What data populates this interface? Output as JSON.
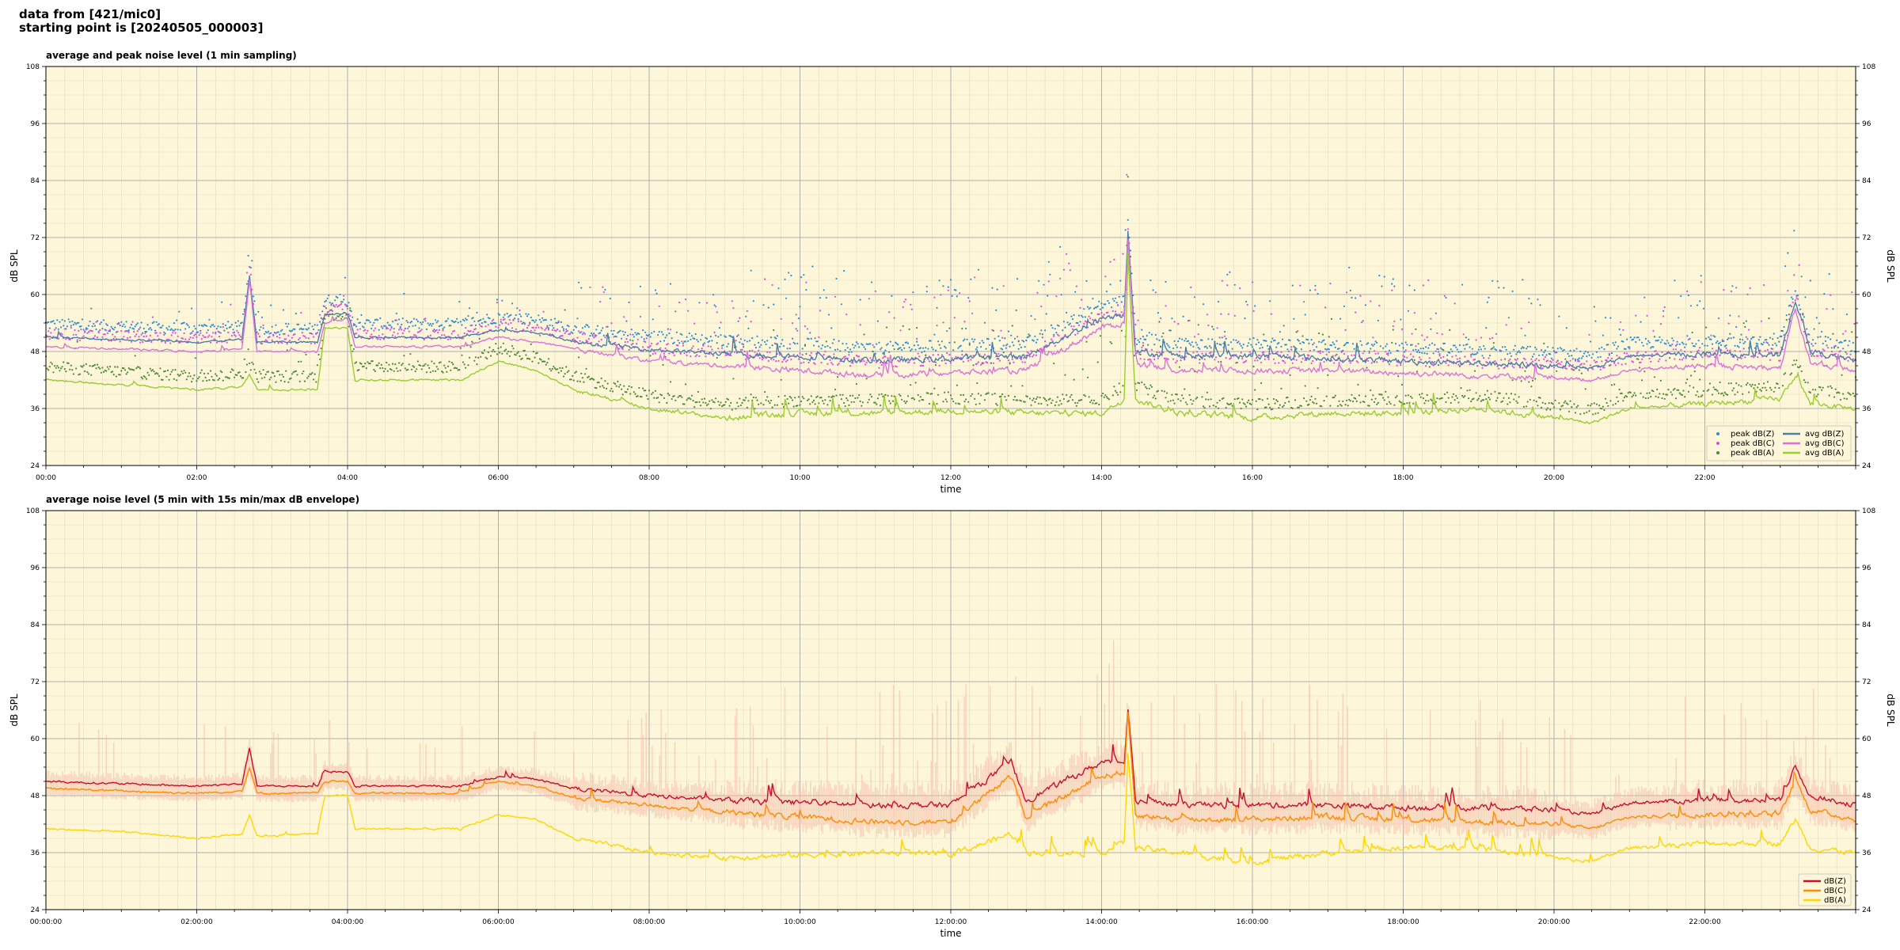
{
  "header": {
    "line1": "data from [421/mic0]",
    "line2": "starting point is [20240505_000003]"
  },
  "chart_data": [
    {
      "type": "line",
      "title": "average and peak noise level (1 min sampling)",
      "xlabel": "time",
      "ylabel": "dB SPL",
      "ylabel_right": "dB SPL",
      "xlim": [
        0,
        24
      ],
      "ylim": [
        24,
        108
      ],
      "yticks": [
        24,
        36,
        48,
        60,
        72,
        84,
        96,
        108
      ],
      "xticks": [
        {
          "h": 0,
          "label": "00:00"
        },
        {
          "h": 2,
          "label": "02:00"
        },
        {
          "h": 4,
          "label": "04:00"
        },
        {
          "h": 6,
          "label": "06:00"
        },
        {
          "h": 8,
          "label": "08:00"
        },
        {
          "h": 10,
          "label": "10:00"
        },
        {
          "h": 12,
          "label": "12:00"
        },
        {
          "h": 14,
          "label": "14:00"
        },
        {
          "h": 16,
          "label": "16:00"
        },
        {
          "h": 18,
          "label": "18:00"
        },
        {
          "h": 20,
          "label": "20:00"
        },
        {
          "h": 22,
          "label": "22:00"
        }
      ],
      "grid": true,
      "background": "#fdf6d8",
      "legend": "bottom-right",
      "series": [
        {
          "name": "avg dB(Z)",
          "kind": "line",
          "color": "#4a7fab",
          "values": [
            [
              0,
              51
            ],
            [
              1,
              50.5
            ],
            [
              2,
              50
            ],
            [
              2.6,
              50.5
            ],
            [
              2.7,
              64
            ],
            [
              2.8,
              50
            ],
            [
              3.6,
              50
            ],
            [
              3.7,
              56
            ],
            [
              4,
              56
            ],
            [
              4.1,
              51
            ],
            [
              5.5,
              51
            ],
            [
              6,
              52.5
            ],
            [
              6.5,
              52
            ],
            [
              7,
              50
            ],
            [
              8,
              48.5
            ],
            [
              9,
              47.5
            ],
            [
              10,
              47
            ],
            [
              11,
              46
            ],
            [
              12,
              46.5
            ],
            [
              13,
              47
            ],
            [
              14,
              55
            ],
            [
              14.3,
              56
            ],
            [
              14.35,
              74
            ],
            [
              14.45,
              48
            ],
            [
              15,
              47
            ],
            [
              16,
              47
            ],
            [
              17,
              46.5
            ],
            [
              18,
              46
            ],
            [
              19,
              45.5
            ],
            [
              20,
              45
            ],
            [
              20.5,
              44.5
            ],
            [
              21,
              47
            ],
            [
              22,
              47.5
            ],
            [
              23,
              47
            ],
            [
              23.2,
              59
            ],
            [
              23.4,
              48
            ],
            [
              24,
              46
            ]
          ]
        },
        {
          "name": "avg dB(C)",
          "kind": "line",
          "color": "#d973d9",
          "values": [
            [
              0,
              49
            ],
            [
              1,
              48.5
            ],
            [
              2,
              48
            ],
            [
              2.6,
              48.5
            ],
            [
              2.7,
              63
            ],
            [
              2.8,
              48
            ],
            [
              3.6,
              48
            ],
            [
              3.7,
              54
            ],
            [
              4,
              55
            ],
            [
              4.1,
              49
            ],
            [
              5.5,
              49
            ],
            [
              6,
              51
            ],
            [
              6.5,
              50
            ],
            [
              7,
              48.5
            ],
            [
              8,
              46
            ],
            [
              9,
              45
            ],
            [
              10,
              44
            ],
            [
              11,
              43
            ],
            [
              12,
              43.5
            ],
            [
              13,
              44
            ],
            [
              14,
              53
            ],
            [
              14.3,
              54
            ],
            [
              14.35,
              72
            ],
            [
              14.45,
              45
            ],
            [
              15,
              44
            ],
            [
              16,
              44
            ],
            [
              17,
              44
            ],
            [
              18,
              43.5
            ],
            [
              19,
              43
            ],
            [
              20,
              42.5
            ],
            [
              20.5,
              42
            ],
            [
              21,
              44
            ],
            [
              22,
              45
            ],
            [
              23,
              44.5
            ],
            [
              23.2,
              57
            ],
            [
              23.4,
              45.5
            ],
            [
              24,
              44
            ]
          ]
        },
        {
          "name": "avg dB(A)",
          "kind": "line",
          "color": "#9acd32",
          "values": [
            [
              0,
              42
            ],
            [
              1,
              41
            ],
            [
              2,
              40
            ],
            [
              2.6,
              40.5
            ],
            [
              2.7,
              43
            ],
            [
              2.8,
              40
            ],
            [
              3.6,
              40
            ],
            [
              3.7,
              53
            ],
            [
              4,
              53
            ],
            [
              4.1,
              42
            ],
            [
              5.5,
              42
            ],
            [
              6,
              46
            ],
            [
              6.5,
              44
            ],
            [
              7,
              40
            ],
            [
              8,
              36
            ],
            [
              9,
              34
            ],
            [
              10,
              35
            ],
            [
              11,
              35
            ],
            [
              12,
              35.5
            ],
            [
              13,
              35
            ],
            [
              14,
              35
            ],
            [
              14.3,
              38
            ],
            [
              14.35,
              69
            ],
            [
              14.45,
              38
            ],
            [
              15,
              35
            ],
            [
              16,
              34
            ],
            [
              17,
              35
            ],
            [
              18,
              35
            ],
            [
              19,
              36
            ],
            [
              20,
              34
            ],
            [
              20.5,
              33
            ],
            [
              21,
              36
            ],
            [
              22,
              37
            ],
            [
              23,
              38
            ],
            [
              23.2,
              43
            ],
            [
              23.4,
              37
            ],
            [
              24,
              36
            ]
          ]
        },
        {
          "name": "peak dB(Z)",
          "kind": "scatter",
          "color": "#2b8fd6",
          "offset_from": "avg dB(Z)"
        },
        {
          "name": "peak dB(C)",
          "kind": "scatter",
          "color": "#e04ce0",
          "offset_from": "avg dB(C)"
        },
        {
          "name": "peak dB(A)",
          "kind": "scatter",
          "color": "#4f8a3b",
          "offset_from": "avg dB(A)"
        }
      ]
    },
    {
      "type": "line",
      "title": "average noise level (5 min with 15s min/max dB envelope)",
      "xlabel": "time",
      "ylabel": "dB SPL",
      "ylabel_right": "dB SPL",
      "xlim": [
        0,
        24
      ],
      "ylim": [
        24,
        108
      ],
      "yticks": [
        24,
        36,
        48,
        60,
        72,
        84,
        96,
        108
      ],
      "xticks": [
        {
          "h": 0,
          "label": "00:00:00"
        },
        {
          "h": 2,
          "label": "02:00:00"
        },
        {
          "h": 4,
          "label": "04:00:00"
        },
        {
          "h": 6,
          "label": "06:00:00"
        },
        {
          "h": 8,
          "label": "08:00:00"
        },
        {
          "h": 10,
          "label": "10:00:00"
        },
        {
          "h": 12,
          "label": "12:00:00"
        },
        {
          "h": 14,
          "label": "14:00:00"
        },
        {
          "h": 16,
          "label": "16:00:00"
        },
        {
          "h": 18,
          "label": "18:00:00"
        },
        {
          "h": 20,
          "label": "20:00:00"
        },
        {
          "h": 22,
          "label": "22:00:00"
        }
      ],
      "grid": true,
      "background": "#fdf6d8",
      "legend": "bottom-right",
      "envelope_color": "#f5b8a8",
      "series": [
        {
          "name": "dB(Z)",
          "kind": "line",
          "color": "#c8102e",
          "values": [
            [
              0,
              51
            ],
            [
              1,
              50.5
            ],
            [
              2,
              50
            ],
            [
              2.6,
              50.5
            ],
            [
              2.7,
              58
            ],
            [
              2.8,
              50
            ],
            [
              3.6,
              50
            ],
            [
              3.7,
              53
            ],
            [
              4,
              53
            ],
            [
              4.1,
              50
            ],
            [
              5.5,
              50
            ],
            [
              6,
              52
            ],
            [
              6.5,
              51.5
            ],
            [
              7,
              49.5
            ],
            [
              8,
              48
            ],
            [
              9,
              47
            ],
            [
              10,
              46.5
            ],
            [
              11,
              46
            ],
            [
              12,
              46
            ],
            [
              12.8,
              55
            ],
            [
              13,
              47
            ],
            [
              14,
              55
            ],
            [
              14.3,
              55
            ],
            [
              14.35,
              67
            ],
            [
              14.45,
              47
            ],
            [
              15,
              46
            ],
            [
              16,
              46
            ],
            [
              17,
              46
            ],
            [
              18,
              45.5
            ],
            [
              19,
              45.5
            ],
            [
              20,
              45
            ],
            [
              20.5,
              44
            ],
            [
              21,
              46.5
            ],
            [
              22,
              47
            ],
            [
              23,
              47
            ],
            [
              23.2,
              54
            ],
            [
              23.4,
              48
            ],
            [
              24,
              46
            ]
          ]
        },
        {
          "name": "dB(C)",
          "kind": "line",
          "color": "#ff8c00",
          "values": [
            [
              0,
              49.5
            ],
            [
              1,
              49
            ],
            [
              2,
              48.5
            ],
            [
              2.6,
              49
            ],
            [
              2.7,
              54
            ],
            [
              2.8,
              48.5
            ],
            [
              3.6,
              48.5
            ],
            [
              3.7,
              51
            ],
            [
              4,
              51
            ],
            [
              4.1,
              48.5
            ],
            [
              5.5,
              48.5
            ],
            [
              6,
              51
            ],
            [
              6.5,
              50
            ],
            [
              7,
              47.5
            ],
            [
              8,
              46
            ],
            [
              9,
              44.5
            ],
            [
              10,
              43.5
            ],
            [
              11,
              42.5
            ],
            [
              12,
              42.5
            ],
            [
              12.8,
              52
            ],
            [
              13,
              43.5
            ],
            [
              14,
              52
            ],
            [
              14.3,
              53
            ],
            [
              14.35,
              65
            ],
            [
              14.45,
              44
            ],
            [
              15,
              43
            ],
            [
              16,
              43
            ],
            [
              17,
              43.5
            ],
            [
              18,
              43
            ],
            [
              19,
              42.5
            ],
            [
              20,
              42
            ],
            [
              20.5,
              41
            ],
            [
              21,
              43.5
            ],
            [
              22,
              44
            ],
            [
              23,
              44
            ],
            [
              23.2,
              51
            ],
            [
              23.4,
              45
            ],
            [
              24,
              43
            ]
          ]
        },
        {
          "name": "dB(A)",
          "kind": "line",
          "color": "#ffd700",
          "values": [
            [
              0,
              41
            ],
            [
              1,
              40.5
            ],
            [
              2,
              39
            ],
            [
              2.6,
              40
            ],
            [
              2.7,
              44
            ],
            [
              2.8,
              39.5
            ],
            [
              3.6,
              40
            ],
            [
              3.7,
              48
            ],
            [
              4,
              48
            ],
            [
              4.1,
              41
            ],
            [
              5.5,
              41
            ],
            [
              6,
              44
            ],
            [
              6.5,
              43
            ],
            [
              7,
              39
            ],
            [
              8,
              36
            ],
            [
              9,
              35
            ],
            [
              10,
              35.5
            ],
            [
              11,
              36
            ],
            [
              12,
              35.5
            ],
            [
              12.8,
              40
            ],
            [
              13,
              36
            ],
            [
              14,
              36
            ],
            [
              14.3,
              38
            ],
            [
              14.35,
              57
            ],
            [
              14.45,
              37
            ],
            [
              15,
              36
            ],
            [
              16,
              34
            ],
            [
              17,
              36
            ],
            [
              18,
              37
            ],
            [
              19,
              37
            ],
            [
              20,
              35
            ],
            [
              20.5,
              34
            ],
            [
              21,
              37
            ],
            [
              22,
              38
            ],
            [
              23,
              38
            ],
            [
              23.2,
              43
            ],
            [
              23.4,
              37
            ],
            [
              24,
              36
            ]
          ]
        }
      ]
    }
  ]
}
